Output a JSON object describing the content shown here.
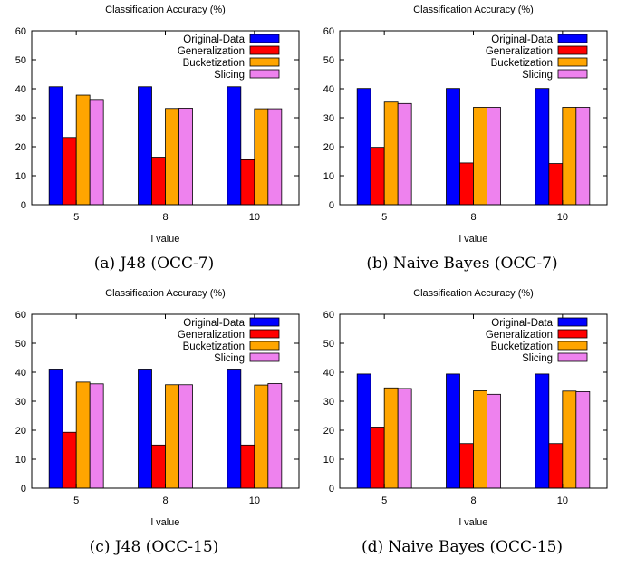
{
  "figure": {
    "panels": [
      {
        "caption": "(a) J48 (OCC-7)"
      },
      {
        "caption": "(b) Naive Bayes (OCC-7)"
      },
      {
        "caption": "(c) J48 (OCC-15)"
      },
      {
        "caption": "(d) Naive Bayes (OCC-15)"
      }
    ]
  },
  "colors": {
    "Original-Data": "#0000ff",
    "Generalization": "#ff0000",
    "Bucketization": "#ffa500",
    "Slicing": "#ee82ee"
  },
  "chart_data": [
    {
      "type": "bar",
      "title": "Classification Accuracy (%)",
      "xlabel": "l value",
      "ylabel": "",
      "categories": [
        "5",
        "8",
        "10"
      ],
      "ylim": [
        0,
        60
      ],
      "yticks": [
        0,
        10,
        20,
        30,
        40,
        50,
        60
      ],
      "legend_position": "top-right",
      "grid": false,
      "series": [
        {
          "name": "Original-Data",
          "values": [
            40.7,
            40.7,
            40.7
          ]
        },
        {
          "name": "Generalization",
          "values": [
            23.2,
            16.4,
            15.5
          ]
        },
        {
          "name": "Bucketization",
          "values": [
            37.8,
            33.2,
            33.1
          ]
        },
        {
          "name": "Slicing",
          "values": [
            36.3,
            33.3,
            33.1
          ]
        }
      ]
    },
    {
      "type": "bar",
      "title": "Classification Accuracy (%)",
      "xlabel": "l value",
      "ylabel": "",
      "categories": [
        "5",
        "8",
        "10"
      ],
      "ylim": [
        0,
        60
      ],
      "yticks": [
        0,
        10,
        20,
        30,
        40,
        50,
        60
      ],
      "legend_position": "top-right",
      "grid": false,
      "series": [
        {
          "name": "Original-Data",
          "values": [
            40.1,
            40.1,
            40.1
          ]
        },
        {
          "name": "Generalization",
          "values": [
            19.8,
            14.4,
            14.2
          ]
        },
        {
          "name": "Bucketization",
          "values": [
            35.4,
            33.6,
            33.6
          ]
        },
        {
          "name": "Slicing",
          "values": [
            34.9,
            33.6,
            33.6
          ]
        }
      ]
    },
    {
      "type": "bar",
      "title": "Classification Accuracy (%)",
      "xlabel": "l value",
      "ylabel": "",
      "categories": [
        "5",
        "8",
        "10"
      ],
      "ylim": [
        0,
        60
      ],
      "yticks": [
        0,
        10,
        20,
        30,
        40,
        50,
        60
      ],
      "legend_position": "top-right",
      "grid": false,
      "series": [
        {
          "name": "Original-Data",
          "values": [
            41.1,
            41.1,
            41.1
          ]
        },
        {
          "name": "Generalization",
          "values": [
            19.3,
            14.9,
            14.9
          ]
        },
        {
          "name": "Bucketization",
          "values": [
            36.6,
            35.7,
            35.6
          ]
        },
        {
          "name": "Slicing",
          "values": [
            36.0,
            35.7,
            36.1
          ]
        }
      ]
    },
    {
      "type": "bar",
      "title": "Classification Accuracy (%)",
      "xlabel": "l value",
      "ylabel": "",
      "categories": [
        "5",
        "8",
        "10"
      ],
      "ylim": [
        0,
        60
      ],
      "yticks": [
        0,
        10,
        20,
        30,
        40,
        50,
        60
      ],
      "legend_position": "top-right",
      "grid": false,
      "series": [
        {
          "name": "Original-Data",
          "values": [
            39.4,
            39.4,
            39.4
          ]
        },
        {
          "name": "Generalization",
          "values": [
            21.1,
            15.4,
            15.4
          ]
        },
        {
          "name": "Bucketization",
          "values": [
            34.6,
            33.6,
            33.5
          ]
        },
        {
          "name": "Slicing",
          "values": [
            34.4,
            32.4,
            33.3
          ]
        }
      ]
    }
  ]
}
